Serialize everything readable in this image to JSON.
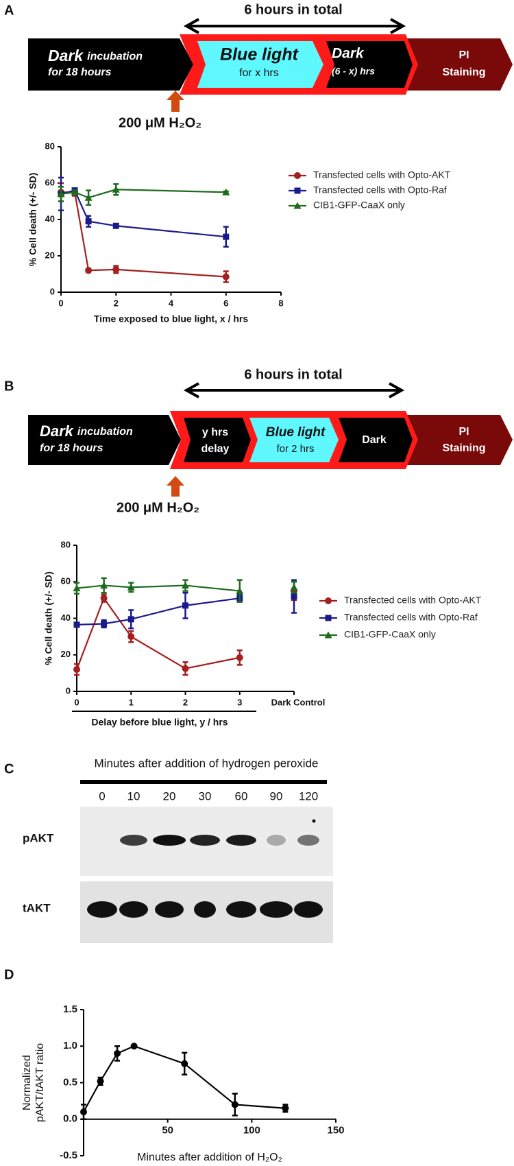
{
  "panel_labels": [
    "A",
    "B",
    "C",
    "D"
  ],
  "diagrams": [
    {
      "span_label": "6 hours in total",
      "steps": [
        {
          "head": "Dark",
          "head_rest": "incubation",
          "sub": "for 18 hours"
        },
        {
          "head": "Blue light",
          "sub": "for x hrs"
        },
        {
          "head": "Dark",
          "sub": "(6 - x) hrs"
        },
        {
          "head": "PI",
          "sub": "Staining"
        }
      ],
      "treatment": "200 μM H₂O₂"
    },
    {
      "span_label": "6 hours in total",
      "steps": [
        {
          "head": "Dark",
          "head_rest": "incubation",
          "sub": "for 18 hours"
        },
        {
          "head": "y hrs",
          "sub": "delay"
        },
        {
          "head": "Blue light",
          "sub": "for 2 hrs"
        },
        {
          "head": "Dark"
        },
        {
          "head": "PI",
          "sub": "Staining"
        }
      ],
      "treatment": "200 μM H₂O₂"
    }
  ],
  "blot": {
    "title": "Minutes after addition of hydrogen peroxide",
    "lanes": [
      "0",
      "10",
      "20",
      "30",
      "60",
      "90",
      "120"
    ],
    "rows": [
      "pAKT",
      "tAKT"
    ]
  },
  "chart_data": [
    {
      "type": "line",
      "y_label": "% Cell death (+/- SD)",
      "x_label": "Time exposed to blue light, x / hrs",
      "x": [
        0,
        0.5,
        1,
        2,
        6
      ],
      "xlim": [
        0,
        8
      ],
      "xticks": [
        0,
        2,
        4,
        6,
        8
      ],
      "ylim": [
        0,
        80
      ],
      "yticks": [
        0,
        20,
        40,
        60,
        80
      ],
      "legend": "right",
      "series": [
        {
          "name": "Transfected cells with Opto-AKT",
          "color": "#a51f1f",
          "marker": "o",
          "values": [
            55,
            55,
            12,
            12.5,
            8.5
          ],
          "errors": [
            5,
            2,
            1,
            2,
            3
          ]
        },
        {
          "name": "Transfected cells with Opto-Raf",
          "color": "#1a1a8c",
          "marker": "s",
          "values": [
            54,
            56,
            39,
            36.5,
            30.5
          ],
          "errors": [
            9,
            1,
            3,
            1,
            5.5
          ]
        },
        {
          "name": "CIB1-GFP-CaaX only",
          "color": "#1e6b1e",
          "marker": "^",
          "values": [
            54,
            55,
            52,
            56.5,
            55
          ],
          "errors": [
            4,
            1,
            4,
            3,
            0.5
          ]
        }
      ]
    },
    {
      "type": "line",
      "y_label": "% Cell death (+/- SD)",
      "x_label": "Delay before blue light, y / hrs",
      "x": [
        0,
        0.5,
        1,
        2,
        3
      ],
      "control_x": 4,
      "xlim": [
        0,
        4
      ],
      "xticks": [
        0,
        1,
        2,
        3,
        {
          "value": 4,
          "label": "Dark Control"
        }
      ],
      "ylim": [
        0,
        80
      ],
      "yticks": [
        0,
        20,
        40,
        60,
        80
      ],
      "legend": "right",
      "series": [
        {
          "name": "Transfected cells with Opto-AKT",
          "color": "#a51f1f",
          "marker": "o",
          "values": [
            12,
            51,
            30,
            12.5,
            18.5
          ],
          "errors": [
            3,
            2,
            3,
            3.5,
            4
          ],
          "control_value": 55,
          "control_error": 5
        },
        {
          "name": "Transfected cells with Opto-Raf",
          "color": "#1a1a8c",
          "marker": "s",
          "values": [
            36.5,
            37,
            39.5,
            47,
            51
          ],
          "errors": [
            1,
            2,
            5,
            7,
            2
          ],
          "control_value": 52,
          "control_error": 9
        },
        {
          "name": "CIB1-GFP-CaaX only",
          "color": "#1e6b1e",
          "marker": "^",
          "values": [
            56.5,
            58,
            57,
            58,
            55
          ],
          "errors": [
            3,
            4,
            2.5,
            3,
            6
          ],
          "control_value": 57,
          "control_error": 3
        }
      ]
    },
    {
      "type": "line",
      "y_label": [
        "Normalized",
        "pAKT/tAKT ratio"
      ],
      "x_label": "Minutes after addition of H₂O₂",
      "x": [
        0,
        10,
        20,
        30,
        60,
        90,
        120
      ],
      "xlim": [
        0,
        150
      ],
      "xticks": [
        50,
        100,
        150
      ],
      "ylim": [
        -0.5,
        1.5
      ],
      "yticks": [
        -0.5,
        {
          "value": 0,
          "label": "0.0"
        },
        0.5,
        {
          "value": 1,
          "label": "1.0"
        },
        1.5
      ],
      "x_axis_at": 0,
      "series": [
        {
          "color": "#000000",
          "marker": "o",
          "values": [
            0.1,
            0.52,
            0.9,
            1.0,
            0.76,
            0.2,
            0.15
          ],
          "errors": [
            0.1,
            0.05,
            0.1,
            0,
            0.15,
            0.15,
            0.05
          ]
        }
      ]
    }
  ]
}
